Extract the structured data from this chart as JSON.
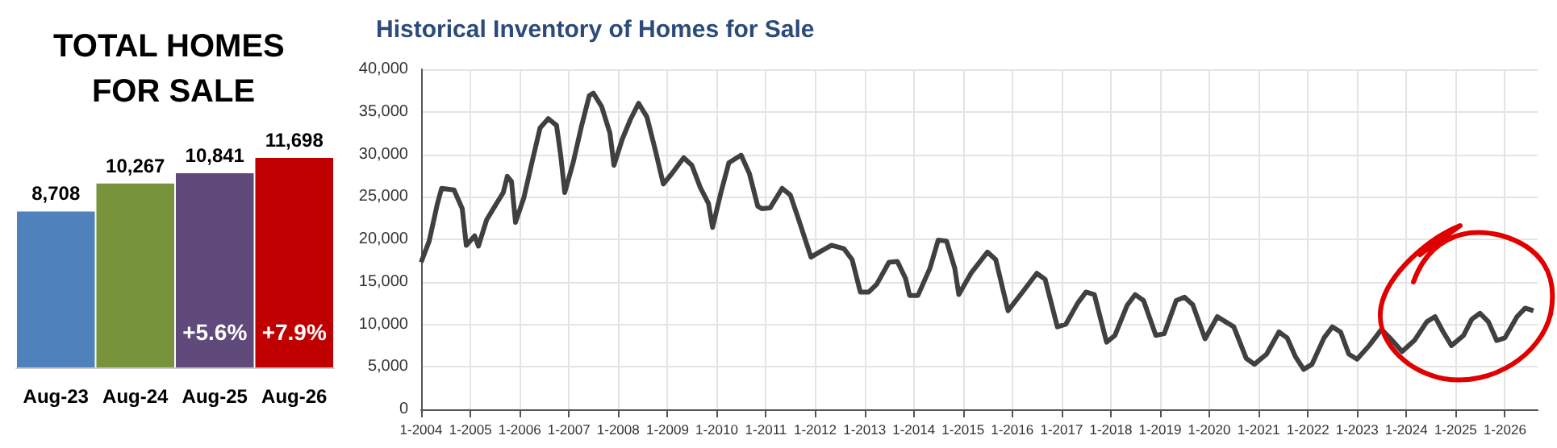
{
  "chart_data": [
    {
      "type": "bar",
      "title": "TOTAL HOMES FOR SALE",
      "categories": [
        "Aug-23",
        "Aug-24",
        "Aug-25",
        "Aug-26"
      ],
      "values": [
        8708,
        10267,
        10841,
        11698
      ],
      "colors": [
        "#4f81bd",
        "#77933c",
        "#604a7b",
        "#c00000"
      ],
      "value_labels": [
        "8,708",
        "10,267",
        "10,841",
        "11,698"
      ],
      "tick_labels": "x",
      "annotations": [
        "+5.6%",
        "+7.9%"
      ]
    },
    {
      "type": "line",
      "title": "Historical Inventory of Homes for Sale",
      "color": "#404040",
      "grid": true,
      "x": [
        "2004-01",
        "2004-03",
        "2004-05",
        "2004-06",
        "2004-09",
        "2004-11",
        "2004-12",
        "2005-02",
        "2005-03",
        "2005-05",
        "2005-07",
        "2005-09",
        "2005-10",
        "2005-11",
        "2005-12",
        "2006-02",
        "2006-04",
        "2006-06",
        "2006-08",
        "2006-10",
        "2006-11",
        "2006-12",
        "2007-02",
        "2007-04",
        "2007-06",
        "2007-07",
        "2007-09",
        "2007-11",
        "2007-12",
        "2008-02",
        "2008-04",
        "2008-06",
        "2008-08",
        "2008-10",
        "2008-12",
        "2009-02",
        "2009-05",
        "2009-07",
        "2009-09",
        "2009-11",
        "2009-12",
        "2010-02",
        "2010-04",
        "2010-07",
        "2010-09",
        "2010-11",
        "2010-12",
        "2011-02",
        "2011-05",
        "2011-07",
        "2011-09",
        "2011-12",
        "2012-02",
        "2012-05",
        "2012-08",
        "2012-10",
        "2012-12",
        "2013-02",
        "2013-04",
        "2013-07",
        "2013-09",
        "2013-11",
        "2013-12",
        "2014-02",
        "2014-05",
        "2014-07",
        "2014-09",
        "2014-11",
        "2014-12",
        "2015-03",
        "2015-07",
        "2015-09",
        "2015-12",
        "2016-04",
        "2016-07",
        "2016-09",
        "2016-12",
        "2017-02",
        "2017-05",
        "2017-07",
        "2017-09",
        "2017-12",
        "2018-02",
        "2018-05",
        "2018-07",
        "2018-09",
        "2018-12",
        "2019-02",
        "2019-05",
        "2019-07",
        "2019-09",
        "2019-12",
        "2020-03",
        "2020-05",
        "2020-07",
        "2020-10",
        "2020-12",
        "2021-03",
        "2021-06",
        "2021-08",
        "2021-10",
        "2021-12",
        "2022-02",
        "2022-05",
        "2022-07",
        "2022-09",
        "2022-11",
        "2023-01",
        "2023-04",
        "2023-07",
        "2023-09",
        "2023-12",
        "2024-03",
        "2024-06",
        "2024-08",
        "2024-10",
        "2024-12",
        "2025-03",
        "2025-05",
        "2025-07",
        "2025-09",
        "2025-11",
        "2026-01",
        "2026-04",
        "2026-06",
        "2026-08"
      ],
      "values": [
        17300,
        19800,
        24200,
        26000,
        25800,
        23600,
        19300,
        20400,
        19200,
        22300,
        23900,
        25500,
        27400,
        26800,
        22000,
        24900,
        29000,
        33100,
        34200,
        33400,
        29900,
        25500,
        29000,
        33100,
        36900,
        37200,
        35600,
        32500,
        28700,
        31800,
        34100,
        36000,
        34400,
        30600,
        26500,
        27700,
        29600,
        28700,
        26100,
        24200,
        21400,
        25500,
        29000,
        29900,
        27700,
        23900,
        23600,
        23700,
        26000,
        25200,
        22300,
        17900,
        18500,
        19300,
        18900,
        17600,
        13800,
        13800,
        14700,
        17300,
        17400,
        15400,
        13400,
        13400,
        16600,
        19900,
        19800,
        16600,
        13500,
        16000,
        18500,
        17600,
        11600,
        14100,
        16000,
        15300,
        9700,
        10000,
        12500,
        13800,
        13500,
        7900,
        8700,
        12200,
        13500,
        12800,
        8700,
        8900,
        12800,
        13200,
        12300,
        8300,
        10900,
        10300,
        9700,
        6000,
        5300,
        6500,
        9100,
        8400,
        6200,
        4700,
        5300,
        8400,
        9700,
        9100,
        6500,
        5900,
        7500,
        9400,
        8400,
        6800,
        8100,
        10300,
        10900,
        9100,
        7500,
        8700,
        10600,
        11300,
        10300,
        8100,
        8400,
        10900,
        11900,
        11600
      ],
      "xlim": [
        "2004-01",
        "2026-09"
      ],
      "xticks": [
        {
          "value": "2004-01",
          "label": "1-2004"
        },
        {
          "value": "2005-01",
          "label": "1-2005"
        },
        {
          "value": "2006-01",
          "label": "1-2006"
        },
        {
          "value": "2007-01",
          "label": "1-2007"
        },
        {
          "value": "2008-01",
          "label": "1-2008"
        },
        {
          "value": "2009-01",
          "label": "1-2009"
        },
        {
          "value": "2010-01",
          "label": "1-2010"
        },
        {
          "value": "2011-01",
          "label": "1-2011"
        },
        {
          "value": "2012-01",
          "label": "1-2012"
        },
        {
          "value": "2013-01",
          "label": "1-2013"
        },
        {
          "value": "2014-01",
          "label": "1-2014"
        },
        {
          "value": "2015-01",
          "label": "1-2015"
        },
        {
          "value": "2016-01",
          "label": "1-2016"
        },
        {
          "value": "2017-01",
          "label": "1-2017"
        },
        {
          "value": "2018-01",
          "label": "1-2018"
        },
        {
          "value": "2019-01",
          "label": "1-2019"
        },
        {
          "value": "2020-01",
          "label": "1-2020"
        },
        {
          "value": "2021-01",
          "label": "1-2021"
        },
        {
          "value": "2022-01",
          "label": "1-2022"
        },
        {
          "value": "2023-01",
          "label": "1-2023"
        },
        {
          "value": "2024-01",
          "label": "1-2024"
        },
        {
          "value": "2025-01",
          "label": "1-2025"
        },
        {
          "value": "2026-01",
          "label": "1-2026"
        }
      ],
      "ylim": [
        0,
        40000
      ],
      "yticks": [
        {
          "value": 0,
          "label": "0"
        },
        {
          "value": 5000,
          "label": "5,000"
        },
        {
          "value": 10000,
          "label": "10,000"
        },
        {
          "value": 15000,
          "label": "15,000"
        },
        {
          "value": 20000,
          "label": "20,000"
        },
        {
          "value": 25000,
          "label": "25,000"
        },
        {
          "value": 30000,
          "label": "30,000"
        },
        {
          "value": 35000,
          "label": "35,000"
        },
        {
          "value": 40000,
          "label": "40,000"
        }
      ]
    }
  ]
}
